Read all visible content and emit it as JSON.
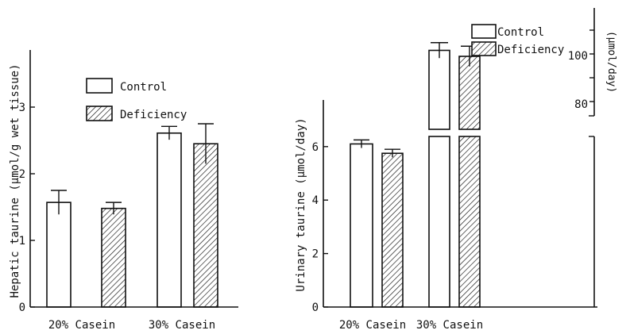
{
  "chart_data": [
    {
      "type": "bar",
      "ylabel": "Hepatic taurine (µmol/g wet tissue)",
      "categories": [
        "20% Casein",
        "30% Casein"
      ],
      "ylim": [
        0,
        4
      ],
      "yticks": [
        "0",
        "1",
        "2",
        "3"
      ],
      "legend_position": "top-center",
      "series": [
        {
          "name": "Control",
          "values": [
            1.57,
            2.61
          ],
          "errors": [
            0.18,
            0.1
          ]
        },
        {
          "name": "Deficiency",
          "values": [
            1.48,
            2.45
          ],
          "errors": [
            0.09,
            0.3
          ]
        }
      ]
    },
    {
      "type": "bar",
      "ylabel": "Urinary taurine (µmol/day)",
      "ylabel_right": "(µmol/day)",
      "categories": [
        "20% Casein",
        "30% Casein"
      ],
      "ylim": [
        0,
        8
      ],
      "yticks": [
        "0",
        "2",
        "4",
        "6"
      ],
      "broken_axis_upper_ylim": [
        70,
        110
      ],
      "yticks_right": [
        "80",
        "100"
      ],
      "legend_position": "top-right",
      "series": [
        {
          "name": "Control",
          "values": [
            6.1,
            103.0
          ],
          "errors": [
            0.15,
            6.5
          ]
        },
        {
          "name": "Deficiency",
          "values": [
            5.75,
            98.0
          ],
          "errors": [
            0.15,
            8.5
          ]
        }
      ]
    }
  ],
  "colors": {
    "bar_fill": "#ffffff",
    "ink": "#111111",
    "hatch": "#111111"
  }
}
